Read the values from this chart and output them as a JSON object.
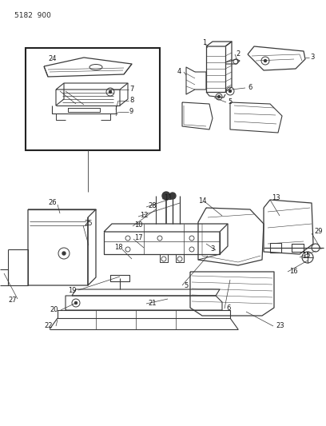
{
  "title": "5182 900",
  "bg_color": "#ffffff",
  "line_color": "#3a3a3a",
  "text_color": "#1a1a1a",
  "fig_width": 4.08,
  "fig_height": 5.33,
  "dpi": 100
}
